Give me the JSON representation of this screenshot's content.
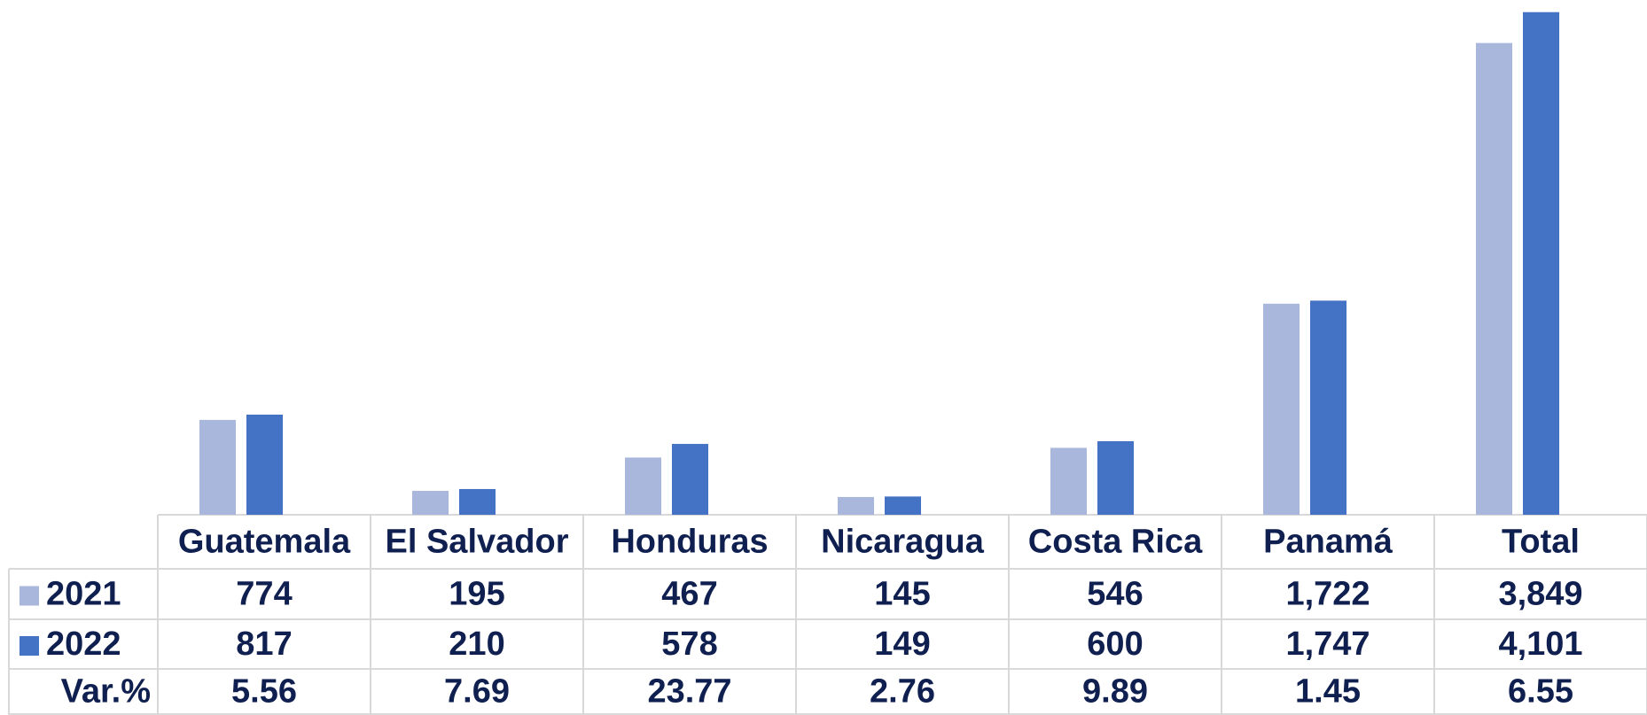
{
  "chart_data": {
    "type": "bar",
    "categories": [
      "Guatemala",
      "El Salvador",
      "Honduras",
      "Nicaragua",
      "Costa Rica",
      "Panamá",
      "Total"
    ],
    "series": [
      {
        "name": "2021",
        "color": "#a9b7dc",
        "values": [
          774,
          195,
          467,
          145,
          546,
          1722,
          3849
        ],
        "value_labels": [
          "774",
          "195",
          "467",
          "145",
          "546",
          "1,722",
          "3,849"
        ]
      },
      {
        "name": "2022",
        "color": "#4472c4",
        "values": [
          817,
          210,
          578,
          149,
          600,
          1747,
          4101
        ],
        "value_labels": [
          "817",
          "210",
          "578",
          "149",
          "600",
          "1,747",
          "4,101"
        ]
      }
    ],
    "table_rows": [
      {
        "name": "Var.%",
        "values": [
          5.56,
          7.69,
          23.77,
          2.76,
          9.89,
          1.45,
          6.55
        ]
      }
    ],
    "ylim": [
      0,
      4200
    ]
  }
}
